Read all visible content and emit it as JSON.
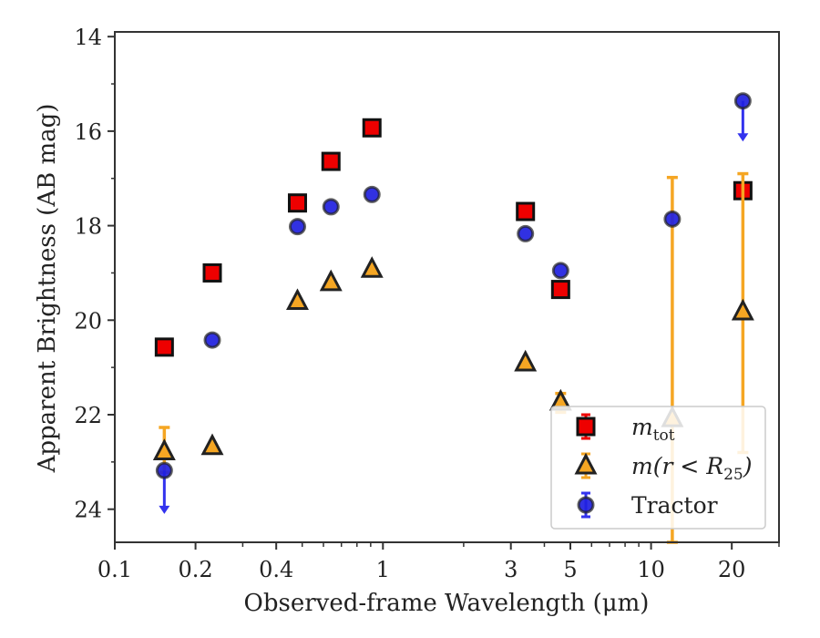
{
  "chart_data": {
    "type": "scatter",
    "title": "",
    "xlabel": "Observed-frame Wavelength (μm)",
    "ylabel": "Apparent Brightness (AB mag)",
    "xscale": "log",
    "xlim": [
      0.1,
      30
    ],
    "ylim": [
      24.7,
      13.9
    ],
    "y_inverted": true,
    "xticks": [
      0.1,
      0.2,
      0.4,
      1,
      3,
      5,
      10,
      20
    ],
    "xtick_labels": [
      "0.1",
      "0.2",
      "0.4",
      "1",
      "3",
      "5",
      "10",
      "20"
    ],
    "yticks": [
      14,
      16,
      18,
      20,
      22,
      24
    ],
    "ytick_labels": [
      "14",
      "16",
      "18",
      "20",
      "22",
      "24"
    ],
    "grid": false,
    "legend_position": "bottom-right",
    "series": [
      {
        "name": "m_tot",
        "legend_main": "m",
        "legend_sub": "tot",
        "marker": "square",
        "color": "#ee0000",
        "errcolor": "#ee0000",
        "points": [
          {
            "x": 0.153,
            "y": 20.57
          },
          {
            "x": 0.231,
            "y": 19.0
          },
          {
            "x": 0.48,
            "y": 17.52
          },
          {
            "x": 0.64,
            "y": 16.64
          },
          {
            "x": 0.91,
            "y": 15.93
          },
          {
            "x": 3.4,
            "y": 17.7
          },
          {
            "x": 4.6,
            "y": 19.35
          },
          {
            "x": 22.0,
            "y": 17.26
          }
        ]
      },
      {
        "name": "m(r < R_25)",
        "legend_main": "m(r < R",
        "legend_sub": "25",
        "legend_close": ")",
        "marker": "triangle",
        "color": "#f5a623",
        "errcolor": "#f5a623",
        "points": [
          {
            "x": 0.153,
            "y": 22.78,
            "err_low": 22.27,
            "err_high": 23.22
          },
          {
            "x": 0.231,
            "y": 22.67
          },
          {
            "x": 0.48,
            "y": 19.6
          },
          {
            "x": 0.64,
            "y": 19.2
          },
          {
            "x": 0.91,
            "y": 18.92
          },
          {
            "x": 3.4,
            "y": 20.9
          },
          {
            "x": 4.6,
            "y": 21.73,
            "err_low": 21.55,
            "err_high": 21.95
          },
          {
            "x": 12.0,
            "y": 22.08,
            "err_low": 16.98,
            "err_high": 24.7
          },
          {
            "x": 22.0,
            "y": 19.82,
            "err_low": 16.9,
            "err_high": 22.8
          }
        ]
      },
      {
        "name": "Tractor",
        "legend_main": "Tractor",
        "marker": "circle",
        "color": "#1f1fe0",
        "errcolor": "#3333ee",
        "points": [
          {
            "x": 0.153,
            "y": 23.18,
            "upper_limit_to": 24.1
          },
          {
            "x": 0.231,
            "y": 20.42
          },
          {
            "x": 0.48,
            "y": 18.02
          },
          {
            "x": 0.64,
            "y": 17.6
          },
          {
            "x": 0.91,
            "y": 17.34
          },
          {
            "x": 3.4,
            "y": 18.17
          },
          {
            "x": 4.6,
            "y": 18.95
          },
          {
            "x": 12.0,
            "y": 17.86
          },
          {
            "x": 22.0,
            "y": 15.36,
            "upper_limit_to": 16.22
          }
        ]
      }
    ]
  }
}
